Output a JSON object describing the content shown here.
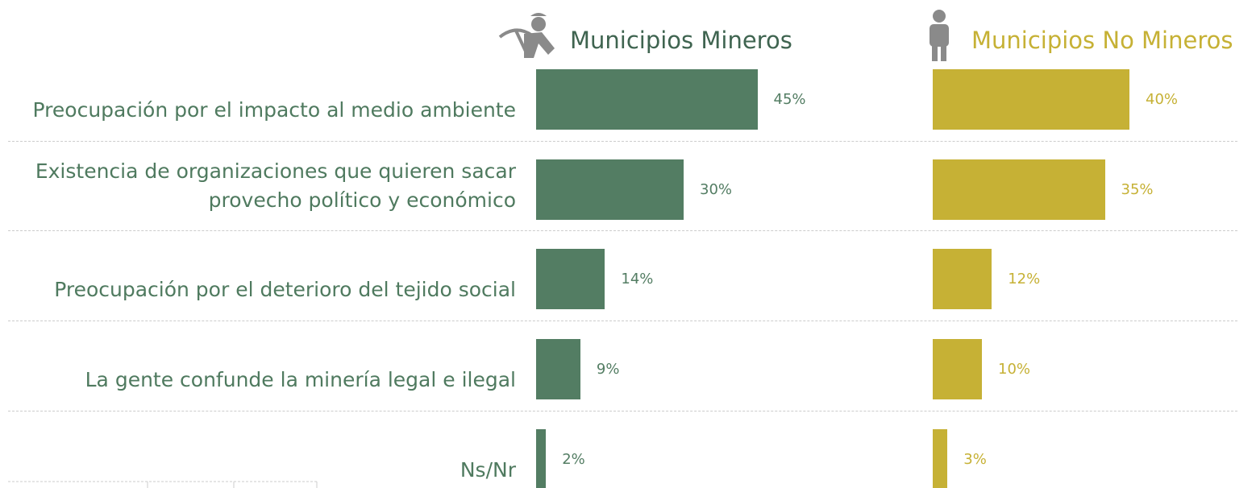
{
  "chart_data": {
    "type": "bar",
    "categories": [
      "Preocupación por el impacto al medio ambiente",
      "Existencia de organizaciones que quieren sacar provecho político y económico",
      "Preocupación por el deterioro del tejido social",
      "La gente confunde la minería legal e ilegal",
      "Ns/Nr"
    ],
    "series": [
      {
        "name": "Municipios Mineros",
        "color": "#537d63",
        "values": [
          45,
          30,
          14,
          9,
          2
        ],
        "value_labels": [
          "45%",
          "30%",
          "14%",
          "9%",
          "2%"
        ]
      },
      {
        "name": "Municipios No Mineros",
        "color": "#c6b135",
        "values": [
          40,
          35,
          12,
          10,
          3
        ],
        "value_labels": [
          "40%",
          "35%",
          "12%",
          "10%",
          "3%"
        ]
      }
    ]
  }
}
